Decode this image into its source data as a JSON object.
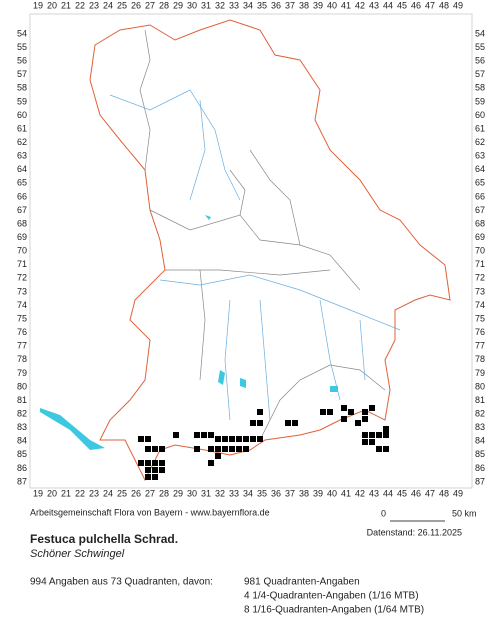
{
  "map": {
    "x_labels": [
      19,
      20,
      21,
      22,
      23,
      24,
      25,
      26,
      27,
      28,
      29,
      30,
      31,
      32,
      33,
      34,
      35,
      36,
      37,
      38,
      39,
      40,
      41,
      42,
      43,
      44,
      45,
      46,
      47,
      48,
      49
    ],
    "y_labels": [
      54,
      55,
      56,
      57,
      58,
      59,
      60,
      61,
      62,
      63,
      64,
      65,
      66,
      67,
      68,
      69,
      70,
      71,
      72,
      73,
      74,
      75,
      76,
      77,
      78,
      79,
      80,
      81,
      82,
      83,
      84,
      85,
      86,
      87
    ],
    "scale_start": "0",
    "scale_end": "50 km"
  },
  "footer": {
    "credit": "Arbeitsgemeinschaft Flora von Bayern - www.bayernflora.de",
    "date": "Datenstand: 26.11.2025",
    "species": "Festuca pulchella Schrad.",
    "common_name": "Schöner Schwingel",
    "summary": "994 Angaben aus 73 Quadranten, davon:",
    "details": [
      "981 Quadranten-Angaben",
      "4 1/4-Quadranten-Angaben (1/16 MTB)",
      "8 1/16-Quadranten-Angaben (1/64 MTB)"
    ]
  }
}
